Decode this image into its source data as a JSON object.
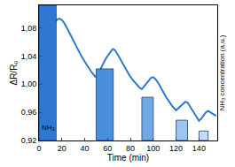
{
  "chart_data": {
    "type": "line",
    "xlabel": "Time (min)",
    "ylabel": "ΔR/R₀",
    "y2label": "NH₃ concentration (a.u.)",
    "xlim": [
      0,
      156
    ],
    "xticks": [
      0,
      20,
      40,
      60,
      80,
      100,
      120,
      140
    ],
    "ylim": [
      0.92,
      1.112
    ],
    "yticks": [
      {
        "value": 0.92,
        "label": "0,92"
      },
      {
        "value": 0.96,
        "label": "0,96"
      },
      {
        "value": 1.0,
        "label": "1,00"
      },
      {
        "value": 1.04,
        "label": "1,04"
      },
      {
        "value": 1.08,
        "label": "1,08"
      }
    ],
    "y2lim": [
      0,
      1
    ],
    "y2ticks": [],
    "grid": false,
    "annotations": [
      {
        "text": "NH₃",
        "x": 1,
        "y": 0.93
      }
    ],
    "series": [
      {
        "type": "bar",
        "axis": "y2",
        "x_start": [
          0,
          50,
          90,
          120,
          140
        ],
        "x_end": [
          15,
          65,
          100,
          130,
          148
        ],
        "values": [
          1,
          0.53,
          0.32,
          0.15,
          0.07
        ],
        "colors": [
          "#2f78d2",
          "#4a8fdc",
          "#6faae6",
          "#9cc6ef",
          "#c4ddf5"
        ]
      },
      {
        "type": "line",
        "color": "#2b7bd0",
        "x": [
          0,
          2,
          4,
          6,
          8,
          10,
          12,
          14,
          16,
          18,
          20,
          22,
          25,
          28,
          31,
          34,
          37,
          40,
          43,
          46,
          49,
          50,
          52,
          54,
          56,
          58,
          60,
          62,
          64,
          65,
          67,
          70,
          73,
          76,
          79,
          82,
          85,
          88,
          90,
          92,
          94,
          96,
          98,
          100,
          102,
          105,
          108,
          111,
          114,
          117,
          120,
          122,
          124,
          126,
          128,
          130,
          132,
          135,
          138,
          140,
          142,
          144,
          146,
          148,
          150,
          152,
          155
        ],
        "values": [
          1.0,
          1.02,
          1.037,
          1.052,
          1.064,
          1.074,
          1.082,
          1.088,
          1.092,
          1.093,
          1.091,
          1.087,
          1.078,
          1.068,
          1.058,
          1.049,
          1.04,
          1.032,
          1.024,
          1.017,
          1.011,
          1.01,
          1.015,
          1.022,
          1.029,
          1.035,
          1.04,
          1.045,
          1.049,
          1.05,
          1.047,
          1.039,
          1.03,
          1.021,
          1.013,
          1.006,
          1.0,
          0.995,
          0.993,
          0.997,
          1.002,
          1.006,
          1.009,
          1.01,
          1.007,
          1.0,
          0.991,
          0.982,
          0.975,
          0.968,
          0.963,
          0.966,
          0.97,
          0.973,
          0.975,
          0.974,
          0.969,
          0.961,
          0.953,
          0.948,
          0.951,
          0.956,
          0.96,
          0.962,
          0.96,
          0.957,
          0.955
        ]
      }
    ]
  }
}
